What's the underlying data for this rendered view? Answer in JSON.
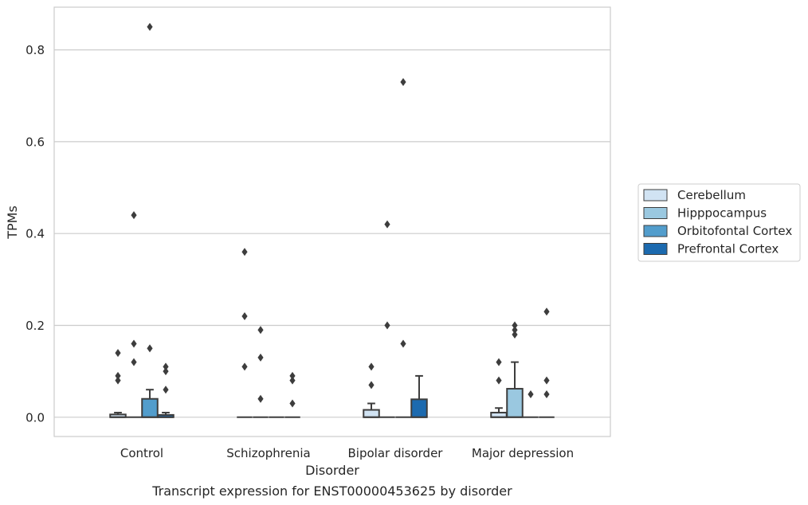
{
  "chart_data": {
    "type": "box",
    "title": "",
    "caption": "Transcript expression for ENST00000453625 by disorder",
    "xlabel": "Disorder",
    "ylabel": "TPMs",
    "categories": [
      "Control",
      "Schizophrenia",
      "Bipolar disorder",
      "Major depression"
    ],
    "y_ticks": [
      "0.0",
      "0.2",
      "0.4",
      "0.6",
      "0.8"
    ],
    "ylim": [
      -0.042,
      0.893
    ],
    "grid": "horizontal",
    "legend_position": "right",
    "series": [
      {
        "name": "Cerebellum",
        "color": "#d1e3f3",
        "boxes": [
          {
            "q1": 0.0,
            "median": 0.0,
            "q3": 0.006,
            "whisker_low": 0.0,
            "whisker_high": 0.01,
            "outliers": [
              0.14,
              0.09,
              0.08
            ]
          },
          {
            "q1": 0.0,
            "median": 0.0,
            "q3": 0.0,
            "whisker_low": 0.0,
            "whisker_high": 0.0,
            "outliers": [
              0.36,
              0.22,
              0.11
            ]
          },
          {
            "q1": 0.0,
            "median": 0.0,
            "q3": 0.016,
            "whisker_low": 0.0,
            "whisker_high": 0.03,
            "outliers": [
              0.11,
              0.07
            ]
          },
          {
            "q1": 0.0,
            "median": 0.0,
            "q3": 0.01,
            "whisker_low": 0.0,
            "whisker_high": 0.02,
            "outliers": [
              0.12,
              0.08
            ]
          }
        ]
      },
      {
        "name": "Hipppocampus",
        "color": "#9ac8e0",
        "boxes": [
          {
            "q1": 0.0,
            "median": 0.0,
            "q3": 0.0,
            "whisker_low": 0.0,
            "whisker_high": 0.0,
            "outliers": [
              0.44,
              0.16,
              0.12
            ]
          },
          {
            "q1": 0.0,
            "median": 0.0,
            "q3": 0.0,
            "whisker_low": 0.0,
            "whisker_high": 0.0,
            "outliers": [
              0.19,
              0.13,
              0.04
            ]
          },
          {
            "q1": 0.0,
            "median": 0.0,
            "q3": 0.0,
            "whisker_low": 0.0,
            "whisker_high": 0.0,
            "outliers": [
              0.42,
              0.2
            ]
          },
          {
            "q1": 0.0,
            "median": 0.0,
            "q3": 0.062,
            "whisker_low": 0.0,
            "whisker_high": 0.12,
            "outliers": [
              0.2,
              0.19,
              0.18
            ]
          }
        ]
      },
      {
        "name": "Orbitofontal Cortex",
        "color": "#529dcc",
        "boxes": [
          {
            "q1": 0.0,
            "median": 0.0,
            "q3": 0.04,
            "whisker_low": 0.0,
            "whisker_high": 0.06,
            "outliers": [
              0.85,
              0.15
            ]
          },
          {
            "q1": 0.0,
            "median": 0.0,
            "q3": 0.0,
            "whisker_low": 0.0,
            "whisker_high": 0.0,
            "outliers": []
          },
          {
            "q1": 0.0,
            "median": 0.0,
            "q3": 0.0,
            "whisker_low": 0.0,
            "whisker_high": 0.0,
            "outliers": [
              0.73,
              0.16
            ]
          },
          {
            "q1": 0.0,
            "median": 0.0,
            "q3": 0.0,
            "whisker_low": 0.0,
            "whisker_high": 0.0,
            "outliers": [
              0.05
            ]
          }
        ]
      },
      {
        "name": "Prefrontal Cortex",
        "color": "#1c6aaf",
        "boxes": [
          {
            "q1": 0.0,
            "median": 0.0,
            "q3": 0.005,
            "whisker_low": 0.0,
            "whisker_high": 0.01,
            "outliers": [
              0.11,
              0.1,
              0.06
            ]
          },
          {
            "q1": 0.0,
            "median": 0.0,
            "q3": 0.0,
            "whisker_low": 0.0,
            "whisker_high": 0.0,
            "outliers": [
              0.09,
              0.08,
              0.03
            ]
          },
          {
            "q1": 0.0,
            "median": 0.0,
            "q3": 0.039,
            "whisker_low": 0.0,
            "whisker_high": 0.09,
            "outliers": []
          },
          {
            "q1": 0.0,
            "median": 0.0,
            "q3": 0.0,
            "whisker_low": 0.0,
            "whisker_high": 0.0,
            "outliers": [
              0.23,
              0.08,
              0.05
            ]
          }
        ]
      }
    ]
  }
}
